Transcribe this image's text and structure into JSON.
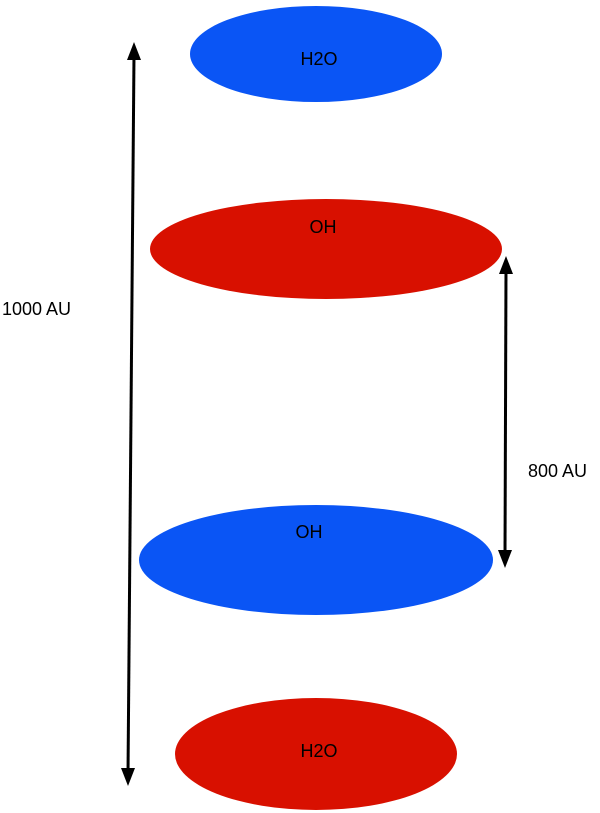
{
  "nodes": [
    {
      "label": "H2O"
    },
    {
      "label": "OH"
    },
    {
      "label": "OH"
    },
    {
      "label": "H2O"
    }
  ],
  "dimensions": [
    {
      "label": "1000 AU"
    },
    {
      "label": "800 AU"
    }
  ]
}
